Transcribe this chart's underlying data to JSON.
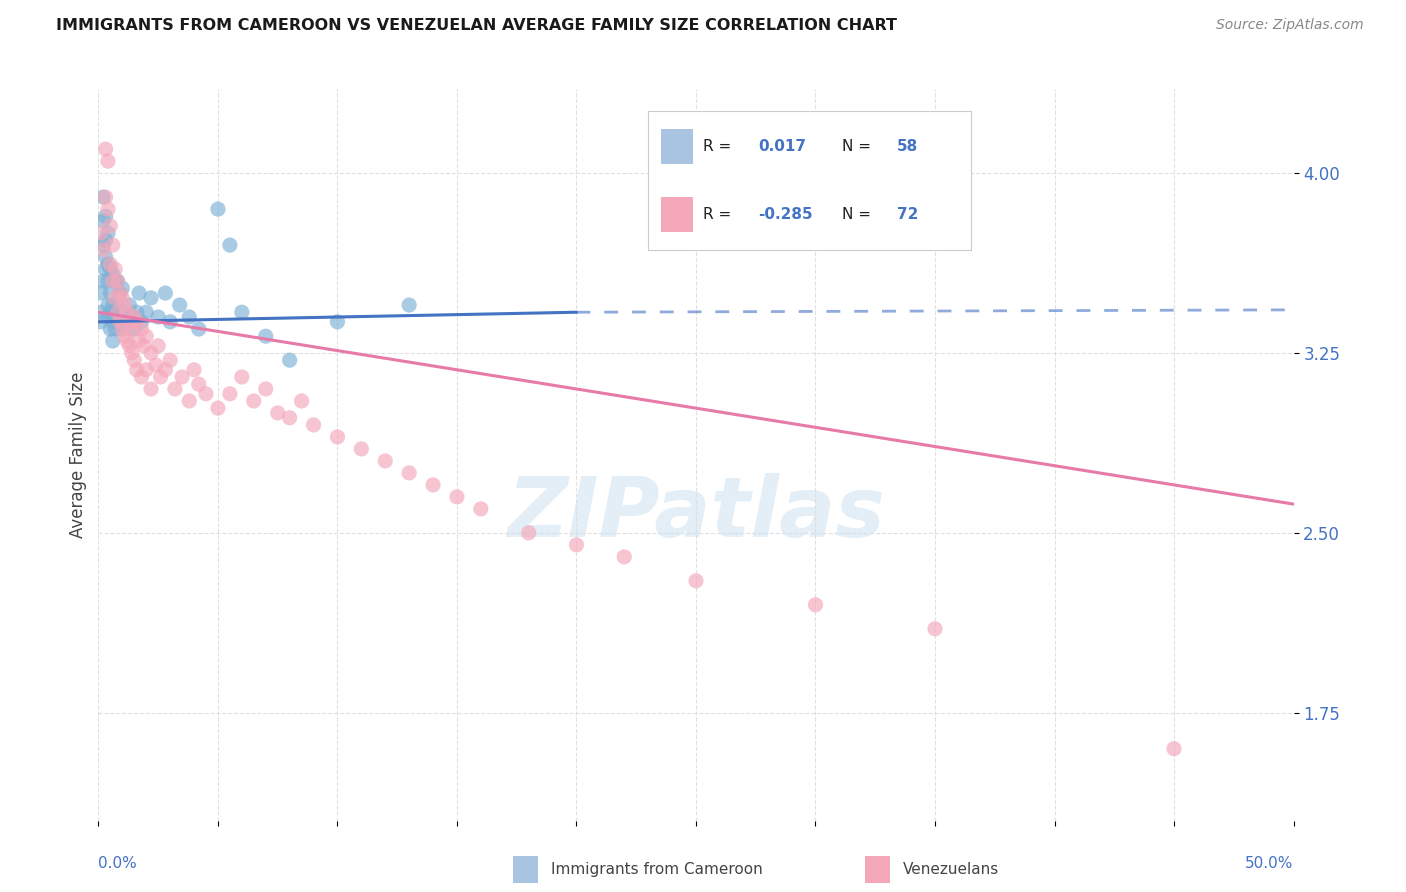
{
  "title": "IMMIGRANTS FROM CAMEROON VS VENEZUELAN AVERAGE FAMILY SIZE CORRELATION CHART",
  "source": "Source: ZipAtlas.com",
  "ylabel": "Average Family Size",
  "yticks": [
    1.75,
    2.5,
    3.25,
    4.0
  ],
  "xlim": [
    0.0,
    0.5
  ],
  "ylim": [
    1.3,
    4.35
  ],
  "watermark": "ZIPatlas",
  "cameroon_color": "#7bafd4",
  "venezuela_color": "#f4a7b9",
  "cameroon_line_color": "#4472c4",
  "venezuela_line_color": "#e87aaa",
  "legend_box_cam": "#a8c4e0",
  "legend_box_ven": "#f4a7b9",
  "R_cam": "0.017",
  "N_cam": "58",
  "R_ven": "-0.285",
  "N_ven": "72",
  "background_color": "#ffffff",
  "grid_color": "#dddddd",
  "cameroon_x": [
    0.001,
    0.001,
    0.001,
    0.002,
    0.002,
    0.002,
    0.002,
    0.003,
    0.003,
    0.003,
    0.003,
    0.004,
    0.004,
    0.004,
    0.004,
    0.004,
    0.005,
    0.005,
    0.005,
    0.005,
    0.006,
    0.006,
    0.006,
    0.006,
    0.007,
    0.007,
    0.007,
    0.008,
    0.008,
    0.008,
    0.009,
    0.009,
    0.01,
    0.01,
    0.01,
    0.011,
    0.012,
    0.013,
    0.014,
    0.015,
    0.016,
    0.017,
    0.018,
    0.02,
    0.022,
    0.025,
    0.028,
    0.03,
    0.034,
    0.038,
    0.042,
    0.05,
    0.055,
    0.06,
    0.07,
    0.08,
    0.1,
    0.13
  ],
  "cameroon_y": [
    3.38,
    3.42,
    3.5,
    3.55,
    3.7,
    3.8,
    3.9,
    3.6,
    3.65,
    3.72,
    3.82,
    3.4,
    3.45,
    3.55,
    3.62,
    3.75,
    3.35,
    3.42,
    3.5,
    3.6,
    3.3,
    3.38,
    3.45,
    3.58,
    3.35,
    3.42,
    3.55,
    3.38,
    3.45,
    3.55,
    3.4,
    3.5,
    3.35,
    3.42,
    3.52,
    3.4,
    3.38,
    3.45,
    3.4,
    3.35,
    3.42,
    3.5,
    3.38,
    3.42,
    3.48,
    3.4,
    3.5,
    3.38,
    3.45,
    3.4,
    3.35,
    3.85,
    3.7,
    3.42,
    3.32,
    3.22,
    3.38,
    3.45
  ],
  "venezuela_x": [
    0.001,
    0.002,
    0.003,
    0.003,
    0.004,
    0.004,
    0.005,
    0.005,
    0.006,
    0.006,
    0.007,
    0.007,
    0.008,
    0.008,
    0.009,
    0.009,
    0.01,
    0.01,
    0.011,
    0.011,
    0.012,
    0.012,
    0.013,
    0.013,
    0.014,
    0.014,
    0.015,
    0.015,
    0.016,
    0.016,
    0.017,
    0.018,
    0.018,
    0.019,
    0.02,
    0.02,
    0.022,
    0.022,
    0.024,
    0.025,
    0.026,
    0.028,
    0.03,
    0.032,
    0.035,
    0.038,
    0.04,
    0.042,
    0.045,
    0.05,
    0.055,
    0.06,
    0.065,
    0.07,
    0.075,
    0.08,
    0.085,
    0.09,
    0.1,
    0.11,
    0.12,
    0.13,
    0.14,
    0.15,
    0.16,
    0.18,
    0.2,
    0.22,
    0.25,
    0.3,
    0.35,
    0.45
  ],
  "venezuela_y": [
    3.75,
    3.68,
    3.9,
    4.1,
    4.05,
    3.85,
    3.78,
    3.62,
    3.7,
    3.55,
    3.6,
    3.48,
    3.55,
    3.42,
    3.5,
    3.38,
    3.48,
    3.35,
    3.45,
    3.32,
    3.42,
    3.3,
    3.38,
    3.28,
    3.35,
    3.25,
    3.4,
    3.22,
    3.38,
    3.18,
    3.3,
    3.35,
    3.15,
    3.28,
    3.32,
    3.18,
    3.25,
    3.1,
    3.2,
    3.28,
    3.15,
    3.18,
    3.22,
    3.1,
    3.15,
    3.05,
    3.18,
    3.12,
    3.08,
    3.02,
    3.08,
    3.15,
    3.05,
    3.1,
    3.0,
    2.98,
    3.05,
    2.95,
    2.9,
    2.85,
    2.8,
    2.75,
    2.7,
    2.65,
    2.6,
    2.5,
    2.45,
    2.4,
    2.3,
    2.2,
    2.1,
    1.6
  ],
  "cam_line_x0": 0.0,
  "cam_line_x1": 0.2,
  "cam_line_y0": 3.38,
  "cam_line_y1": 3.42,
  "ven_line_x0": 0.0,
  "ven_line_x1": 0.5,
  "ven_line_y0": 3.42,
  "ven_line_y1": 2.62
}
